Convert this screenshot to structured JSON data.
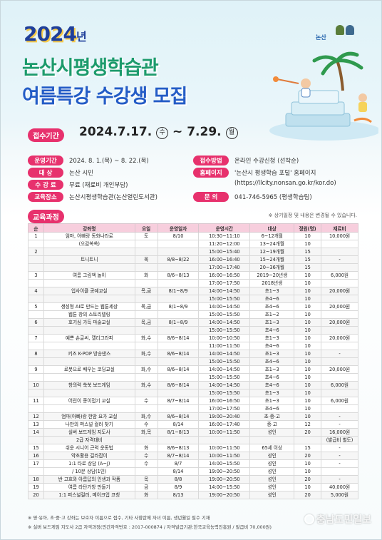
{
  "header": {
    "year": "2024",
    "year_suffix": "년",
    "title_line1": "논산시평생학습관",
    "title_line2": "여름특강 수강생 모집",
    "logo_text": "논산",
    "colors": {
      "title1": "#1d9b6c",
      "title2": "#245cc6",
      "accent": "#e7316d"
    }
  },
  "period": {
    "label": "접수기간",
    "prefix": "2024.",
    "start": "7.17.",
    "start_day": "수",
    "tilde": "~",
    "end": "7.29.",
    "end_day": "월"
  },
  "info": {
    "rows": [
      {
        "label": "운영기간",
        "value": "2024. 8. 1.(목) ~ 8. 22.(목)"
      },
      {
        "label": "대 상",
        "value": "논산 시민"
      },
      {
        "label": "수 강 료",
        "value": "무료 (재료비 개인부담)"
      },
      {
        "label": "교육장소",
        "value": "논산시평생학습관(논산열린도서관)"
      },
      {
        "label": "접수방법",
        "value": "온라인 수강신청 (선착순)"
      },
      {
        "label": "홈페이지",
        "value": "'논산시 평생학습 포털' 홈페이지"
      },
      {
        "label": "",
        "value": "(https://llcity.nonsan.go.kr/kor.do)"
      },
      {
        "label": "문 의",
        "value": "041-746-5965 (평생학습팀)"
      }
    ]
  },
  "course_label": "교육과정",
  "note": "※ 상기일정 및 내용은 변경될 수 있습니다.",
  "table": {
    "headers": [
      "순",
      "강좌명",
      "요일",
      "운영일자",
      "운영시간",
      "대상",
      "정원(명)",
      "재료비"
    ],
    "rows": [
      [
        "1",
        "엄마, 아빠랑 동화나라로",
        "토",
        "8/10",
        "10:30~11:10",
        "6~12개월",
        "10",
        "10,000원"
      ],
      [
        "",
        "(오감쏙쏙)",
        "",
        "",
        "11:20~12:00",
        "13~24개월",
        "10",
        ""
      ],
      [
        "2",
        "",
        "",
        "",
        "15:00~15:40",
        "12~19개월",
        "15",
        ""
      ],
      [
        "",
        "트니트니",
        "목",
        "8/8~8/22",
        "16:00~16:40",
        "15~24개월",
        "15",
        "-"
      ],
      [
        "",
        "",
        "",
        "",
        "17:00~17:40",
        "20~36개월",
        "15",
        ""
      ],
      [
        "3",
        "여름 그림책 놀이",
        "화",
        "8/6~8/13",
        "16:00~16:50",
        "2019~20년생",
        "10",
        "6,000원"
      ],
      [
        "",
        "",
        "",
        "",
        "17:00~17:50",
        "2018년생",
        "10",
        ""
      ],
      [
        "4",
        "업사이클 공예교실",
        "목,금",
        "8/1~8/9",
        "14:00~14:50",
        "초1~3",
        "10",
        "20,000원"
      ],
      [
        "",
        "",
        "",
        "",
        "15:00~15:50",
        "초4~6",
        "10",
        ""
      ],
      [
        "5",
        "생성형 AI로 만드는 웹툰세상",
        "목,금",
        "8/1~8/9",
        "14:00~14:50",
        "초4~6",
        "10",
        "20,000원"
      ],
      [
        "",
        "웹툰 창의 스토리텔링",
        "",
        "",
        "15:00~15:50",
        "초1~2",
        "10",
        ""
      ],
      [
        "6",
        "호기심 가득 마술교실",
        "목,금",
        "8/1~8/9",
        "14:00~14:50",
        "초1~3",
        "10",
        "20,000원"
      ],
      [
        "",
        "",
        "",
        "",
        "15:00~15:50",
        "초4~6",
        "10",
        ""
      ],
      [
        "7",
        "예쁜 손글씨, 캘리그라피",
        "화,수",
        "8/6~8/14",
        "10:00~10:50",
        "초1~3",
        "10",
        "20,000원"
      ],
      [
        "",
        "",
        "",
        "",
        "11:00~11:50",
        "초4~6",
        "10",
        ""
      ],
      [
        "8",
        "키즈 K-POP 방송댄스",
        "화,수",
        "8/6~8/14",
        "14:00~14:50",
        "초1~3",
        "10",
        "-"
      ],
      [
        "",
        "",
        "",
        "",
        "15:00~15:50",
        "초4~6",
        "10",
        ""
      ],
      [
        "9",
        "로봇으로 배우는 코딩교실",
        "화,수",
        "8/6~8/14",
        "14:00~14:50",
        "초1~3",
        "10",
        "20,000원"
      ],
      [
        "",
        "",
        "",
        "",
        "15:00~15:50",
        "초4~6",
        "10",
        ""
      ],
      [
        "10",
        "창의력 쑥쑥 보드게임",
        "화,수",
        "8/6~8/14",
        "14:00~14:50",
        "초4~6",
        "10",
        "6,000원"
      ],
      [
        "",
        "",
        "",
        "",
        "15:00~15:50",
        "초1~3",
        "10",
        ""
      ],
      [
        "11",
        "어린이 종이접기 교실",
        "수",
        "8/7~8/14",
        "16:00~16:50",
        "초1~3",
        "10",
        "6,000원"
      ],
      [
        "",
        "",
        "",
        "",
        "17:00~17:50",
        "초4~6",
        "10",
        ""
      ],
      [
        "12",
        "엄마(아빠)랑 한밤 요가 교실",
        "화,수",
        "8/6~8/14",
        "19:00~20:40",
        "초·중·고",
        "10",
        "-"
      ],
      [
        "13",
        "나만의 퍼스널 컬러 찾기",
        "수",
        "8/14",
        "16:00~17:40",
        "중·고",
        "12",
        "-"
      ],
      [
        "14",
        "실버 보드게임 지도사",
        "화,목",
        "8/1~8/13",
        "10:00~11:50",
        "성인",
        "20",
        "16,000원"
      ],
      [
        "",
        "2급 자격대비",
        "",
        "",
        "",
        "",
        "",
        "(발급비 별도)"
      ],
      [
        "15",
        "쉬운 시니어 근력 운동법",
        "화",
        "8/6~8/13",
        "10:00~11:50",
        "65세 이상",
        "15",
        "-"
      ],
      [
        "16",
        "약초활용 길라잡이",
        "수",
        "8/7~8/14",
        "10:00~11:50",
        "성인",
        "20",
        "-"
      ],
      [
        "17",
        "1:1 타로 상담 (A~J)",
        "수",
        "8/7",
        "14:00~15:50",
        "성인",
        "10",
        "-"
      ],
      [
        "",
        "/ 10분 상담(1인)",
        "",
        "8/14",
        "19:00~20:50",
        "성인",
        "10",
        ""
      ],
      [
        "18",
        "반 고흐와 아름답의 인생과 작품",
        "목",
        "8/8",
        "19:00~20:50",
        "성인",
        "20",
        "-"
      ],
      [
        "19",
        "여름 라탄가방 만들기",
        "금",
        "8/9",
        "14:00~15:50",
        "성인",
        "10",
        "40,000원"
      ],
      [
        "20",
        "1:1 퍼스널컬러, 메이크업 코칭",
        "화",
        "8/13",
        "19:00~20:50",
        "성인",
        "20",
        "5,000원"
      ]
    ]
  },
  "footer": {
    "line1": "※ 영·유아, 초·중·고 강좌는 보호자 이름으로 접수, 기타 사항란에 자녀 이름, 생년월일 필수 기재",
    "line2": "※ 실버 보드게임 지도사 2급 자격과정(민간자격번호 : 2017-000874 / 자격발급기관:한국교육능력진흥원 / 발급비 70,000원)"
  },
  "watermark": "충남도민일보"
}
